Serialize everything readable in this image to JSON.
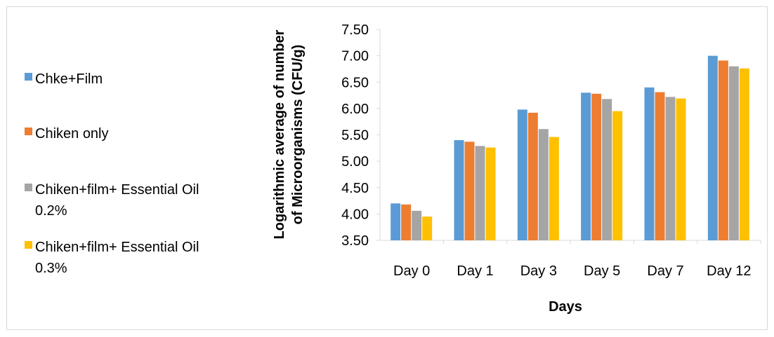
{
  "chart_data": {
    "type": "bar",
    "title": "",
    "xlabel": "Days",
    "ylabel": "Logarithmic average of number of Microorganisms (CFU/g)",
    "ylabel_lines": [
      "Logarithmic average of number",
      "of Microorganisms (CFU/g)"
    ],
    "ylim": [
      3.5,
      7.5
    ],
    "yticks": [
      "3.50",
      "4.00",
      "4.50",
      "5.00",
      "5.50",
      "6.00",
      "6.50",
      "7.00",
      "7.50"
    ],
    "ytick_values": [
      3.5,
      4.0,
      4.5,
      5.0,
      5.5,
      6.0,
      6.5,
      7.0,
      7.5
    ],
    "grid": false,
    "legend_position": "left",
    "categories": [
      "Day 0",
      "Day 1",
      "Day 3",
      "Day 5",
      "Day 7",
      "Day 12"
    ],
    "series": [
      {
        "name": "Chke+Film",
        "color": "#5B9BD5",
        "values": [
          4.2,
          5.4,
          5.98,
          6.3,
          6.4,
          7.0
        ]
      },
      {
        "name": "Chiken only",
        "color": "#ED7D31",
        "values": [
          4.18,
          5.37,
          5.92,
          6.28,
          6.31,
          6.91
        ]
      },
      {
        "name": "Chiken+film+ Essential Oil\n0.2%",
        "color": "#A5A5A5",
        "values": [
          4.06,
          5.29,
          5.61,
          6.18,
          6.22,
          6.8
        ]
      },
      {
        "name": "Chiken+film+ Essential Oil\n0.3%",
        "color": "#FFC000",
        "values": [
          3.95,
          5.26,
          5.46,
          5.95,
          6.19,
          6.76
        ]
      }
    ]
  }
}
